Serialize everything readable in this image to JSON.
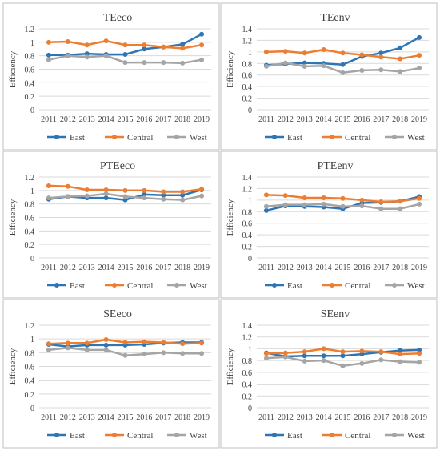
{
  "colors": {
    "East": "#2e75b6",
    "Central": "#ed7d31",
    "West": "#a5a5a5",
    "gridline": "#d9d9d9",
    "panel_border": "#bfbfbf",
    "text": "#404040"
  },
  "chart_data": [
    {
      "type": "line",
      "title": "TEeco",
      "ylabel": "Efficiency",
      "xlabel": "",
      "categories": [
        "2011",
        "2012",
        "2013",
        "2014",
        "2015",
        "2016",
        "2017",
        "2018",
        "2019"
      ],
      "ylim": [
        0,
        1.2
      ],
      "yticks": [
        0,
        0.2,
        0.4,
        0.6,
        0.8,
        1,
        1.2
      ],
      "legend": "bottom",
      "grid": true,
      "series": [
        {
          "name": "East",
          "values": [
            0.81,
            0.81,
            0.83,
            0.82,
            0.82,
            0.9,
            0.93,
            0.97,
            1.12
          ]
        },
        {
          "name": "Central",
          "values": [
            1.0,
            1.01,
            0.96,
            1.02,
            0.96,
            0.96,
            0.93,
            0.91,
            0.96
          ]
        },
        {
          "name": "West",
          "values": [
            0.74,
            0.8,
            0.78,
            0.8,
            0.7,
            0.7,
            0.7,
            0.69,
            0.74
          ]
        }
      ]
    },
    {
      "type": "line",
      "title": "TEenv",
      "ylabel": "Efficiency",
      "xlabel": "",
      "categories": [
        "2011",
        "2012",
        "2013",
        "2014",
        "2015",
        "2016",
        "2017",
        "2018",
        "2019"
      ],
      "ylim": [
        0,
        1.4
      ],
      "yticks": [
        0,
        0.2,
        0.4,
        0.6,
        0.8,
        1,
        1.2,
        1.4
      ],
      "legend": "bottom",
      "grid": true,
      "series": [
        {
          "name": "East",
          "values": [
            0.77,
            0.79,
            0.81,
            0.8,
            0.78,
            0.92,
            0.98,
            1.07,
            1.25
          ]
        },
        {
          "name": "Central",
          "values": [
            1.0,
            1.01,
            0.98,
            1.04,
            0.98,
            0.95,
            0.91,
            0.88,
            0.94
          ]
        },
        {
          "name": "West",
          "values": [
            0.75,
            0.81,
            0.75,
            0.76,
            0.64,
            0.68,
            0.69,
            0.66,
            0.72
          ]
        }
      ]
    },
    {
      "type": "line",
      "title": "PTEeco",
      "ylabel": "Efficiency",
      "xlabel": "",
      "categories": [
        "2011",
        "2012",
        "2013",
        "2014",
        "2015",
        "2016",
        "2017",
        "2018",
        "2019"
      ],
      "ylim": [
        0,
        1.2
      ],
      "yticks": [
        0,
        0.2,
        0.4,
        0.6,
        0.8,
        1,
        1.2
      ],
      "legend": "bottom",
      "grid": true,
      "series": [
        {
          "name": "East",
          "values": [
            0.87,
            0.91,
            0.89,
            0.89,
            0.86,
            0.94,
            0.93,
            0.93,
            1.01
          ]
        },
        {
          "name": "Central",
          "values": [
            1.07,
            1.06,
            1.01,
            1.01,
            1.0,
            1.0,
            0.98,
            0.98,
            1.02
          ]
        },
        {
          "name": "West",
          "values": [
            0.89,
            0.91,
            0.92,
            0.95,
            0.91,
            0.89,
            0.87,
            0.86,
            0.92
          ]
        }
      ]
    },
    {
      "type": "line",
      "title": "PTEenv",
      "ylabel": "Efficiency",
      "xlabel": "",
      "categories": [
        "2011",
        "2012",
        "2013",
        "2014",
        "2015",
        "2016",
        "2017",
        "2018",
        "2019"
      ],
      "ylim": [
        0,
        1.4
      ],
      "yticks": [
        0,
        0.2,
        0.4,
        0.6,
        0.8,
        1,
        1.2,
        1.4
      ],
      "legend": "bottom",
      "grid": true,
      "series": [
        {
          "name": "East",
          "values": [
            0.82,
            0.9,
            0.89,
            0.88,
            0.85,
            0.95,
            0.96,
            0.98,
            1.06
          ]
        },
        {
          "name": "Central",
          "values": [
            1.09,
            1.08,
            1.04,
            1.04,
            1.03,
            1.0,
            0.97,
            0.98,
            1.03
          ]
        },
        {
          "name": "West",
          "values": [
            0.89,
            0.92,
            0.92,
            0.93,
            0.89,
            0.9,
            0.85,
            0.85,
            0.93
          ]
        }
      ]
    },
    {
      "type": "line",
      "title": "SEeco",
      "ylabel": "Efficiency",
      "xlabel": "",
      "categories": [
        "2011",
        "2012",
        "2013",
        "2014",
        "2015",
        "2016",
        "2017",
        "2018",
        "2019"
      ],
      "ylim": [
        0,
        1.2
      ],
      "yticks": [
        0,
        0.2,
        0.4,
        0.6,
        0.8,
        1,
        1.2
      ],
      "legend": "bottom",
      "grid": true,
      "series": [
        {
          "name": "East",
          "values": [
            0.92,
            0.89,
            0.91,
            0.91,
            0.91,
            0.92,
            0.94,
            0.95,
            0.95
          ]
        },
        {
          "name": "Central",
          "values": [
            0.93,
            0.94,
            0.94,
            0.99,
            0.95,
            0.96,
            0.95,
            0.93,
            0.94
          ]
        },
        {
          "name": "West",
          "values": [
            0.84,
            0.87,
            0.84,
            0.84,
            0.76,
            0.78,
            0.8,
            0.79,
            0.79
          ]
        }
      ]
    },
    {
      "type": "line",
      "title": "SEenv",
      "ylabel": "Efficiency",
      "xlabel": "",
      "categories": [
        "2011",
        "2012",
        "2013",
        "2014",
        "2015",
        "2016",
        "2017",
        "2018",
        "2019"
      ],
      "ylim": [
        0,
        1.4
      ],
      "yticks": [
        0,
        0.2,
        0.4,
        0.6,
        0.8,
        1,
        1.2,
        1.4
      ],
      "legend": "bottom",
      "grid": true,
      "series": [
        {
          "name": "East",
          "values": [
            0.93,
            0.87,
            0.88,
            0.88,
            0.88,
            0.91,
            0.94,
            0.97,
            0.98
          ]
        },
        {
          "name": "Central",
          "values": [
            0.92,
            0.93,
            0.95,
            1.0,
            0.95,
            0.96,
            0.95,
            0.91,
            0.92
          ]
        },
        {
          "name": "West",
          "values": [
            0.84,
            0.86,
            0.79,
            0.8,
            0.71,
            0.75,
            0.81,
            0.78,
            0.77
          ]
        }
      ]
    }
  ]
}
